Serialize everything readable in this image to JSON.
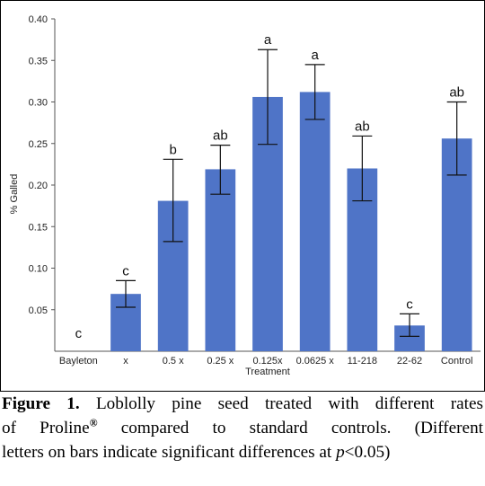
{
  "chart_data": {
    "type": "bar",
    "categories": [
      "Bayleton",
      "x",
      "0.5 x",
      "0.25 x",
      "0.125x",
      "0.0625 x",
      "11-218",
      "22-62",
      "Control"
    ],
    "values": [
      0.0,
      0.069,
      0.181,
      0.219,
      0.306,
      0.312,
      0.22,
      0.031,
      0.256
    ],
    "error_low": [
      null,
      0.053,
      0.132,
      0.189,
      0.249,
      0.279,
      0.181,
      0.018,
      0.212
    ],
    "error_high": [
      null,
      0.085,
      0.231,
      0.248,
      0.363,
      0.345,
      0.259,
      0.045,
      0.3
    ],
    "letters": [
      "c",
      "c",
      "b",
      "ab",
      "a",
      "a",
      "ab",
      "c",
      "ab"
    ],
    "xlabel": "Treatment",
    "ylabel": "% Galled",
    "ylim": [
      0,
      0.4
    ],
    "yticks": [
      0.05,
      0.1,
      0.15,
      0.2,
      0.25,
      0.3,
      0.35,
      0.4
    ],
    "ytick_labels": [
      "0.05",
      "0.10",
      "0.15",
      "0.20",
      "0.25",
      "0.30",
      "0.35",
      "0.40"
    ],
    "bar_color": "#4F74C7",
    "grid": false,
    "legend": "none"
  },
  "caption": {
    "label": "Figure 1.",
    "line1": " Loblolly pine seed treated with different rates",
    "line2_a": "of Proline",
    "trademark": "®",
    "line2_b": " compared to standard controls. (Different",
    "line3_a": "letters on bars indicate significant differences at ",
    "p_symbol": "p",
    "line3_b": "<0.05)"
  }
}
